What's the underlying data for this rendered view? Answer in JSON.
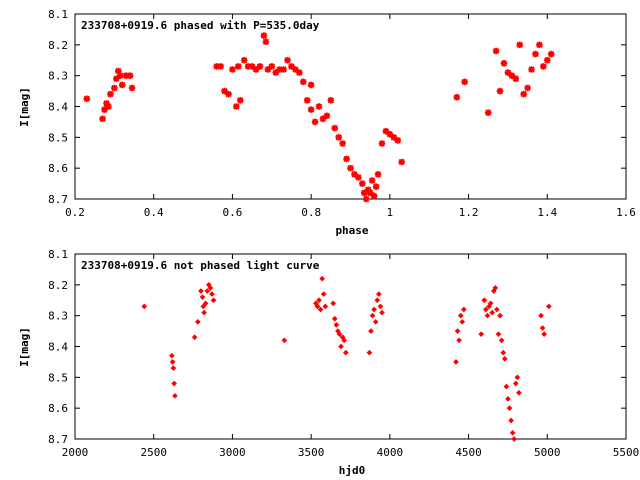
{
  "chart_data": [
    {
      "type": "scatter",
      "title": "233708+0919.6 phased with P=535.0day",
      "xlabel": "phase",
      "ylabel": "I[mag]",
      "xlim": [
        0.2,
        1.6
      ],
      "ylim": [
        8.7,
        8.1
      ],
      "y_inverted": true,
      "xticks": [
        "0.2",
        "0.4",
        "0.6",
        "0.8",
        "1",
        "1.2",
        "1.4",
        "1.6"
      ],
      "yticks": [
        "8.1",
        "8.2",
        "8.3",
        "8.4",
        "8.5",
        "8.6",
        "8.7"
      ],
      "grid": false,
      "marker": "star",
      "color": "#ff0000",
      "series": [
        {
          "x": [
            0.23,
            0.27,
            0.275,
            0.28,
            0.285,
            0.29,
            0.3,
            0.305,
            0.31,
            0.315,
            0.32,
            0.33,
            0.34,
            0.345,
            0.56,
            0.57,
            0.58,
            0.59,
            0.6,
            0.61,
            0.615,
            0.62,
            0.63,
            0.64,
            0.65,
            0.66,
            0.67,
            0.68,
            0.685,
            0.69,
            0.7,
            0.71,
            0.72,
            0.73,
            0.74,
            0.75,
            0.76,
            0.77,
            0.78,
            0.79,
            0.8,
            0.8,
            0.81,
            0.82,
            0.83,
            0.84,
            0.85,
            0.86,
            0.87,
            0.88,
            0.89,
            0.9,
            0.91,
            0.92,
            0.93,
            0.935,
            0.94,
            0.945,
            0.95,
            0.955,
            0.96,
            0.965,
            0.97,
            0.98,
            0.99,
            1.0,
            1.01,
            1.02,
            1.03,
            1.17,
            1.19,
            1.25,
            1.27,
            1.28,
            1.29,
            1.3,
            1.31,
            1.32,
            1.33,
            1.34,
            1.35,
            1.36,
            1.37,
            1.38,
            1.39,
            1.4,
            1.41
          ],
          "y": [
            8.375,
            8.44,
            8.41,
            8.39,
            8.4,
            8.36,
            8.34,
            8.31,
            8.285,
            8.3,
            8.33,
            8.3,
            8.3,
            8.34,
            8.27,
            8.27,
            8.35,
            8.36,
            8.28,
            8.4,
            8.27,
            8.38,
            8.25,
            8.27,
            8.27,
            8.28,
            8.27,
            8.17,
            8.19,
            8.28,
            8.27,
            8.29,
            8.28,
            8.28,
            8.25,
            8.27,
            8.28,
            8.29,
            8.32,
            8.38,
            8.33,
            8.41,
            8.45,
            8.4,
            8.44,
            8.43,
            8.38,
            8.47,
            8.5,
            8.52,
            8.57,
            8.6,
            8.62,
            8.63,
            8.65,
            8.68,
            8.7,
            8.67,
            8.68,
            8.64,
            8.69,
            8.66,
            8.62,
            8.52,
            8.48,
            8.49,
            8.5,
            8.51,
            8.58,
            8.37,
            8.32,
            8.42,
            8.22,
            8.35,
            8.26,
            8.29,
            8.3,
            8.31,
            8.2,
            8.36,
            8.34,
            8.28,
            8.23,
            8.2,
            8.27,
            8.25,
            8.23
          ]
        }
      ]
    },
    {
      "type": "scatter",
      "title": "233708+0919.6 not phased light curve",
      "xlabel": "hjd0",
      "ylabel": "I[mag]",
      "xlim": [
        2000,
        5500
      ],
      "ylim": [
        8.7,
        8.1
      ],
      "y_inverted": true,
      "xticks": [
        "2000",
        "2500",
        "3000",
        "3500",
        "4000",
        "4500",
        "5000",
        "5500"
      ],
      "yticks": [
        "8.1",
        "8.2",
        "8.3",
        "8.4",
        "8.5",
        "8.6",
        "8.7"
      ],
      "grid": false,
      "marker": "diamond",
      "color": "#ff0000",
      "series": [
        {
          "x": [
            2440,
            2615,
            2620,
            2625,
            2630,
            2635,
            2760,
            2780,
            2800,
            2810,
            2815,
            2820,
            2830,
            2840,
            2850,
            2860,
            2870,
            2880,
            3330,
            3530,
            3540,
            3550,
            3560,
            3570,
            3580,
            3590,
            3640,
            3650,
            3660,
            3670,
            3680,
            3690,
            3700,
            3710,
            3720,
            3870,
            3880,
            3890,
            3900,
            3910,
            3920,
            3930,
            3940,
            3950,
            4420,
            4430,
            4440,
            4450,
            4460,
            4470,
            4580,
            4600,
            4610,
            4620,
            4630,
            4640,
            4650,
            4660,
            4670,
            4680,
            4690,
            4700,
            4710,
            4720,
            4730,
            4740,
            4750,
            4760,
            4770,
            4780,
            4790,
            4800,
            4810,
            4820,
            4960,
            4970,
            4980,
            5010
          ],
          "y": [
            8.27,
            8.43,
            8.45,
            8.47,
            8.52,
            8.56,
            8.37,
            8.32,
            8.22,
            8.24,
            8.27,
            8.29,
            8.26,
            8.22,
            8.2,
            8.21,
            8.23,
            8.25,
            8.38,
            8.26,
            8.27,
            8.25,
            8.28,
            8.18,
            8.23,
            8.27,
            8.26,
            8.31,
            8.33,
            8.35,
            8.36,
            8.4,
            8.37,
            8.38,
            8.42,
            8.42,
            8.35,
            8.3,
            8.28,
            8.32,
            8.25,
            8.23,
            8.27,
            8.29,
            8.45,
            8.35,
            8.38,
            8.3,
            8.32,
            8.28,
            8.36,
            8.25,
            8.28,
            8.3,
            8.27,
            8.26,
            8.29,
            8.22,
            8.21,
            8.28,
            8.36,
            8.3,
            8.38,
            8.42,
            8.44,
            8.53,
            8.57,
            8.6,
            8.64,
            8.68,
            8.7,
            8.52,
            8.5,
            8.55,
            8.3,
            8.34,
            8.36,
            8.27
          ]
        }
      ]
    }
  ]
}
